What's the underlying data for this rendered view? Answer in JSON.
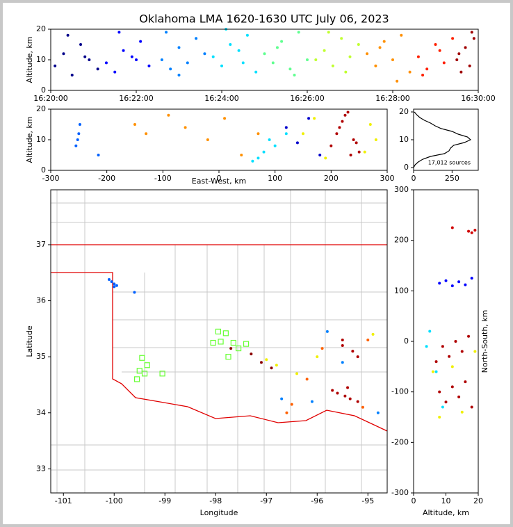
{
  "chart_data": [
    {
      "type": "scatter",
      "title": "Oklahoma LMA 1620-1630 UTC July 06, 2023",
      "y_label": "Altitude, km",
      "xlim": [
        0,
        10
      ],
      "xticks": [
        {
          "value": 0,
          "label": "16:20:00"
        },
        {
          "value": 2,
          "label": "16:22:00"
        },
        {
          "value": 4,
          "label": "16:24:00"
        },
        {
          "value": 6,
          "label": "16:26:00"
        },
        {
          "value": 8,
          "label": "16:28:00"
        },
        {
          "value": 10,
          "label": "16:30:00"
        }
      ],
      "ylim": [
        0,
        20
      ],
      "yticks": [
        0,
        10,
        20
      ],
      "series": [
        {
          "color": "#00008b",
          "x": [
            0.1,
            0.3,
            0.5,
            0.7,
            0.9,
            1.1,
            0.4,
            0.8
          ],
          "values": [
            8,
            12,
            5,
            15,
            10,
            7,
            18,
            11
          ]
        },
        {
          "color": "#0000ff",
          "x": [
            1.3,
            1.5,
            1.7,
            1.9,
            2.1,
            2.3,
            1.6,
            2.0
          ],
          "values": [
            9,
            6,
            13,
            11,
            16,
            8,
            19,
            10
          ]
        },
        {
          "color": "#0080ff",
          "x": [
            2.6,
            2.8,
            3.0,
            3.2,
            3.4,
            3.6,
            3.0,
            2.7
          ],
          "values": [
            10,
            7,
            14,
            9,
            17,
            12,
            5,
            19
          ]
        },
        {
          "color": "#00e0ff",
          "x": [
            3.8,
            4.0,
            4.2,
            4.4,
            4.6,
            4.8,
            4.1,
            4.5
          ],
          "values": [
            11,
            8,
            15,
            13,
            18,
            6,
            20,
            9
          ]
        },
        {
          "color": "#60ff90",
          "x": [
            5.0,
            5.2,
            5.4,
            5.6,
            5.8,
            6.0,
            5.3,
            5.7
          ],
          "values": [
            12,
            9,
            16,
            7,
            19,
            10,
            14,
            5
          ]
        },
        {
          "color": "#c0ff30",
          "x": [
            6.2,
            6.4,
            6.6,
            6.8,
            7.0,
            7.2,
            6.5,
            6.9
          ],
          "values": [
            10,
            13,
            8,
            17,
            11,
            15,
            19,
            6
          ]
        },
        {
          "color": "#ff9000",
          "x": [
            7.4,
            7.6,
            7.8,
            8.0,
            8.2,
            8.4,
            7.7,
            8.1
          ],
          "values": [
            12,
            8,
            16,
            10,
            18,
            6,
            14,
            3
          ]
        },
        {
          "color": "#ff2000",
          "x": [
            8.6,
            8.8,
            9.0,
            9.2,
            9.4,
            8.7,
            9.1
          ],
          "values": [
            11,
            7,
            15,
            9,
            17,
            5,
            13
          ]
        },
        {
          "color": "#a00000",
          "x": [
            9.5,
            9.6,
            9.7,
            9.8,
            9.9,
            9.55,
            9.85
          ],
          "values": [
            10,
            6,
            14,
            8,
            17,
            12,
            19
          ]
        }
      ]
    },
    {
      "type": "scatter",
      "x_label": "East-West, km",
      "y_label": "Altitude, km",
      "xlim": [
        -300,
        300
      ],
      "xticks": [
        -300,
        -200,
        -100,
        0,
        100,
        200,
        300
      ],
      "ylim": [
        0,
        20
      ],
      "yticks": [
        0,
        10,
        20
      ],
      "series": [
        {
          "color": "#0060ff",
          "x": [
            -255,
            -250,
            -248,
            -252,
            -215
          ],
          "values": [
            8,
            12,
            15,
            10,
            5
          ]
        },
        {
          "color": "#ff9000",
          "x": [
            -150,
            -130,
            -90,
            -60,
            -20,
            10,
            40,
            70
          ],
          "values": [
            15,
            12,
            18,
            14,
            10,
            17,
            5,
            12
          ]
        },
        {
          "color": "#00e0ff",
          "x": [
            60,
            80,
            100,
            120,
            90,
            70
          ],
          "values": [
            3,
            6,
            8,
            12,
            10,
            4
          ]
        },
        {
          "color": "#0000cc",
          "x": [
            120,
            140,
            160,
            180
          ],
          "values": [
            14,
            9,
            17,
            5
          ]
        },
        {
          "color": "#f0f000",
          "x": [
            150,
            170,
            260,
            280,
            190,
            270
          ],
          "values": [
            12,
            17,
            6,
            10,
            4,
            15
          ]
        },
        {
          "color": "#b00000",
          "x": [
            200,
            210,
            220,
            230,
            240,
            250,
            215,
            235,
            225,
            245
          ],
          "values": [
            8,
            12,
            16,
            19,
            10,
            6,
            14,
            5,
            18,
            9
          ]
        }
      ]
    },
    {
      "type": "line",
      "annotation": "17,012 sources",
      "xlim": [
        0,
        420
      ],
      "xticks": [
        0,
        250
      ],
      "ylim": [
        -1,
        21
      ],
      "yticks": [
        0,
        10,
        20
      ],
      "color": "#000000",
      "x": [
        0,
        10,
        30,
        60,
        110,
        200,
        230,
        240,
        260,
        330,
        370,
        350,
        290,
        250,
        180,
        140,
        110,
        70,
        40,
        20,
        5
      ],
      "values": [
        0,
        1,
        2,
        3,
        4,
        5,
        6,
        7,
        8,
        9,
        10,
        11,
        12,
        13,
        14,
        15,
        16,
        17,
        18,
        19,
        20
      ]
    },
    {
      "type": "scatter",
      "x_label": "Longitude",
      "y_label": "Latitude",
      "xlim": [
        -101.25,
        -94.62
      ],
      "xticks": [
        -101,
        -100,
        -99,
        -98,
        -97,
        -96,
        -95
      ],
      "ylim": [
        32.57,
        37.98
      ],
      "yticks": [
        33,
        34,
        35,
        36,
        37
      ],
      "series": [
        {
          "color": "#66ff33",
          "marker": "square",
          "x": [
            -97.95,
            -97.8,
            -97.9,
            -97.65,
            -97.55,
            -97.4,
            -97.75,
            -99.45,
            -99.35,
            -99.5,
            -99.4,
            -99.05,
            -99.55,
            -98.05
          ],
          "values": [
            35.45,
            35.42,
            35.27,
            35.25,
            35.15,
            35.23,
            35.0,
            34.98,
            34.85,
            34.75,
            34.7,
            34.7,
            34.6,
            35.25
          ]
        },
        {
          "color": "#0060ff",
          "x": [
            -100.1,
            -100.05,
            -100.0,
            -99.95,
            -100.0,
            -99.6
          ],
          "values": [
            36.38,
            36.34,
            36.3,
            36.27,
            36.25,
            36.15
          ]
        },
        {
          "color": "#0080ff",
          "x": [
            -95.8,
            -96.1,
            -95.5,
            -94.8,
            -96.7
          ],
          "values": [
            35.45,
            34.2,
            34.9,
            34.0,
            34.25
          ]
        },
        {
          "color": "#f0f000",
          "x": [
            -96.8,
            -97.0,
            -96.4,
            -96.0,
            -94.9
          ],
          "values": [
            34.85,
            34.95,
            34.7,
            35.0,
            35.4
          ]
        },
        {
          "color": "#ff6000",
          "x": [
            -95.9,
            -96.2,
            -95.0,
            -95.1,
            -96.5,
            -96.6
          ],
          "values": [
            35.15,
            34.6,
            35.3,
            34.1,
            34.15,
            34.0
          ]
        },
        {
          "color": "#b00000",
          "x": [
            -95.5,
            -95.3,
            -95.2,
            -95.4,
            -95.6,
            -95.45,
            -95.7,
            -95.5,
            -95.35,
            -95.2
          ],
          "values": [
            35.2,
            35.1,
            35.0,
            34.45,
            34.35,
            34.3,
            34.4,
            35.3,
            34.25,
            34.2
          ]
        },
        {
          "color": "#8b0000",
          "x": [
            -97.3,
            -97.1,
            -97.7,
            -96.9
          ],
          "values": [
            35.05,
            34.9,
            35.15,
            34.8
          ]
        }
      ]
    },
    {
      "type": "scatter",
      "x_label": "Altitude, km",
      "y_label": "North-South, km",
      "xlim": [
        0,
        20
      ],
      "xticks": [
        0,
        10,
        20
      ],
      "ylim": [
        -300,
        300
      ],
      "yticks": [
        -300,
        -200,
        -100,
        0,
        100,
        200,
        300
      ],
      "series": [
        {
          "color": "#00e0ff",
          "x": [
            5,
            7,
            9,
            4
          ],
          "values": [
            20,
            -60,
            -130,
            -10
          ]
        },
        {
          "color": "#0000ff",
          "x": [
            8,
            10,
            12,
            14,
            16,
            18
          ],
          "values": [
            115,
            120,
            110,
            118,
            112,
            125
          ]
        },
        {
          "color": "#f0f000",
          "x": [
            6,
            8,
            12,
            15,
            19
          ],
          "values": [
            -60,
            -150,
            -50,
            -140,
            -20
          ]
        },
        {
          "color": "#b00000",
          "x": [
            8,
            10,
            12,
            14,
            16,
            18,
            9,
            11,
            13,
            15,
            7,
            17
          ],
          "values": [
            -100,
            -120,
            -90,
            -110,
            -80,
            -130,
            -10,
            -30,
            0,
            -20,
            -40,
            10
          ]
        },
        {
          "color": "#d00000",
          "x": [
            17,
            18,
            19,
            12
          ],
          "values": [
            218,
            215,
            220,
            225
          ]
        }
      ]
    }
  ]
}
